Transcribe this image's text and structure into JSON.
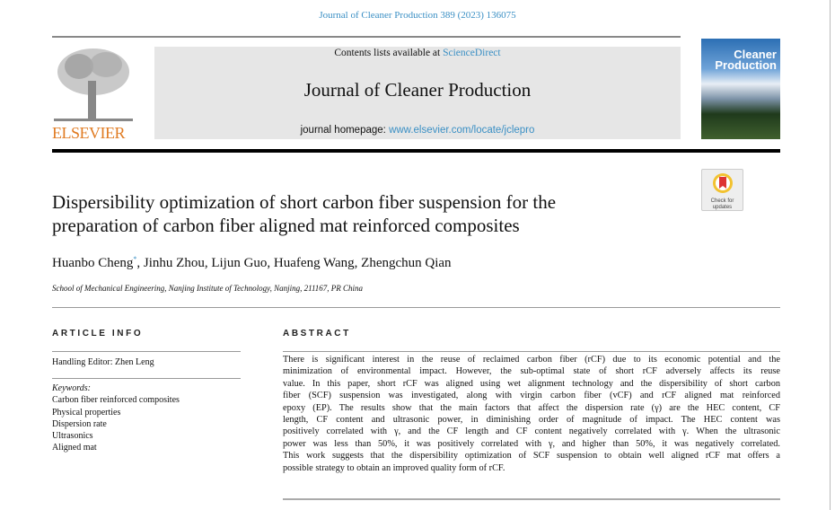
{
  "header": {
    "citation": "Journal of Cleaner Production 389 (2023) 136075"
  },
  "masthead": {
    "publisher_logo_text": "ELSEVIER",
    "contents_prefix": "Contents lists available at ",
    "contents_link": "ScienceDirect",
    "journal_title": "Journal of Cleaner Production",
    "homepage_prefix": "journal homepage: ",
    "homepage_link": "www.elsevier.com/locate/jclepro",
    "cover_title_line1": "Cleaner",
    "cover_title_line2": "Production"
  },
  "check_updates": {
    "label_line1": "Check for",
    "label_line2": "updates"
  },
  "article": {
    "title_lines": [
      "Dispersibility optimization of short carbon fiber suspension for the",
      "preparation of carbon fiber aligned mat reinforced composites"
    ],
    "authors": [
      "Huanbo Cheng",
      "Jinhu Zhou",
      "Lijun Guo",
      "Huafeng Wang",
      "Zhengchun Qian"
    ],
    "corresponding_mark": "*",
    "affiliation": "School of Mechanical Engineering, Nanjing Institute of Technology, Nanjing, 211167, PR China"
  },
  "article_info": {
    "heading": "ARTICLE INFO",
    "handling_editor": "Handling Editor: Zhen Leng",
    "keywords_label": "Keywords:",
    "keywords": [
      "Carbon fiber reinforced composites",
      "Physical properties",
      "Dispersion rate",
      "Ultrasonics",
      "Aligned mat"
    ]
  },
  "abstract": {
    "heading": "ABSTRACT",
    "lines": [
      "There is significant interest in the reuse of reclaimed carbon fiber (rCF) due to its economic potential and the",
      "minimization of environmental impact. However, the sub-optimal state of short rCF adversely affects its reuse",
      "value. In this paper, short rCF was aligned using wet alignment technology and the dispersibility of short carbon",
      "fiber (SCF) suspension was investigated, along with virgin carbon fiber (vCF) and rCF aligned mat reinforced",
      "epoxy (EP). The results show that the main factors that affect the dispersion rate (γ) are the HEC content, CF",
      "length, CF content and ultrasonic power, in diminishing order of magnitude of impact. The HEC content was",
      "positively correlated with γ, and the CF length and CF content negatively correlated with γ. When the ultrasonic",
      "power was less than 50%, it was positively correlated with γ, and higher than 50%, it was negatively correlated.",
      "This work suggests that the dispersibility optimization of SCF suspension to obtain well aligned rCF mat offers a",
      "possible strategy to obtain an improved quality form of rCF."
    ]
  },
  "colors": {
    "link": "#3a8fc4",
    "elsevier_orange": "#e07b22",
    "masthead_grey": "#e6e6e6"
  }
}
